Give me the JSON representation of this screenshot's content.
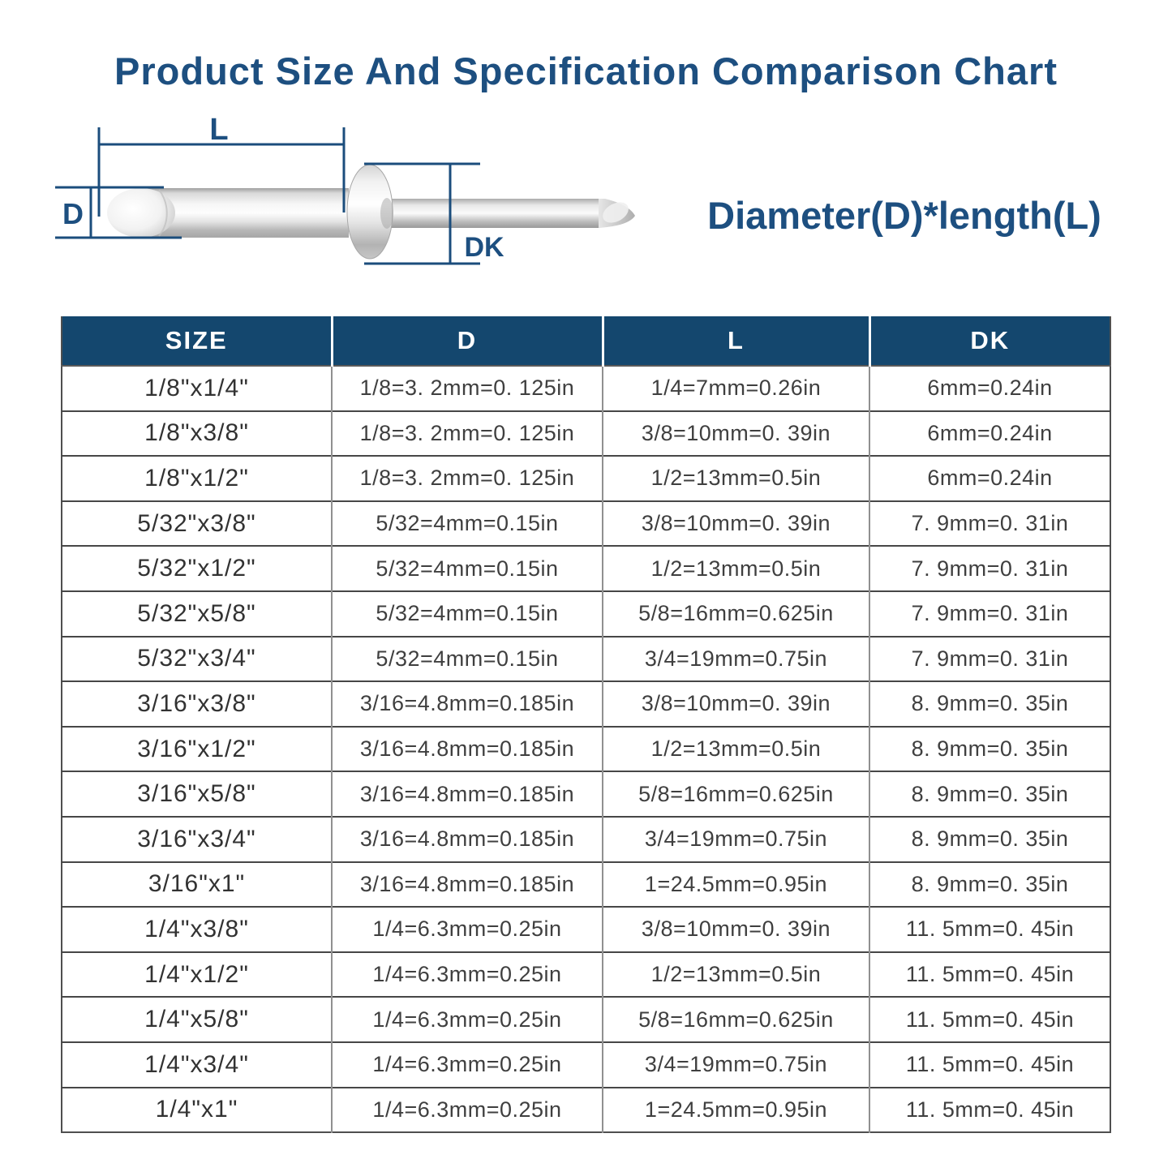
{
  "page": {
    "title": "Product Size And Specification Comparison Chart",
    "formula": "Diameter(D)*length(L)"
  },
  "diagram": {
    "label_l": "L",
    "label_d": "D",
    "label_dk": "DK"
  },
  "colors": {
    "navy_text": "#1d4f80",
    "header_bg": "#14476e",
    "dimension_line": "#1b4d7c",
    "cell_text": "#3f3f3f"
  },
  "table": {
    "headers": {
      "size": "SIZE",
      "d": "D",
      "l": "L",
      "dk": "DK"
    },
    "rows": [
      {
        "size": "1/8\"x1/4\"",
        "d": "1/8=3. 2mm=0. 125in",
        "l": "1/4=7mm=0.26in",
        "dk": "6mm=0.24in"
      },
      {
        "size": "1/8\"x3/8\"",
        "d": "1/8=3. 2mm=0. 125in",
        "l": "3/8=10mm=0. 39in",
        "dk": "6mm=0.24in"
      },
      {
        "size": "1/8\"x1/2\"",
        "d": "1/8=3. 2mm=0. 125in",
        "l": "1/2=13mm=0.5in",
        "dk": "6mm=0.24in"
      },
      {
        "size": "5/32\"x3/8\"",
        "d": "5/32=4mm=0.15in",
        "l": "3/8=10mm=0. 39in",
        "dk": "7. 9mm=0. 31in"
      },
      {
        "size": "5/32\"x1/2\"",
        "d": "5/32=4mm=0.15in",
        "l": "1/2=13mm=0.5in",
        "dk": "7. 9mm=0. 31in"
      },
      {
        "size": "5/32\"x5/8\"",
        "d": "5/32=4mm=0.15in",
        "l": "5/8=16mm=0.625in",
        "dk": "7. 9mm=0. 31in"
      },
      {
        "size": "5/32\"x3/4\"",
        "d": "5/32=4mm=0.15in",
        "l": "3/4=19mm=0.75in",
        "dk": "7. 9mm=0. 31in"
      },
      {
        "size": "3/16\"x3/8\"",
        "d": "3/16=4.8mm=0.185in",
        "l": "3/8=10mm=0. 39in",
        "dk": "8. 9mm=0. 35in"
      },
      {
        "size": "3/16\"x1/2\"",
        "d": "3/16=4.8mm=0.185in",
        "l": "1/2=13mm=0.5in",
        "dk": "8. 9mm=0. 35in"
      },
      {
        "size": "3/16\"x5/8\"",
        "d": "3/16=4.8mm=0.185in",
        "l": "5/8=16mm=0.625in",
        "dk": "8. 9mm=0. 35in"
      },
      {
        "size": "3/16\"x3/4\"",
        "d": "3/16=4.8mm=0.185in",
        "l": "3/4=19mm=0.75in",
        "dk": "8. 9mm=0. 35in"
      },
      {
        "size": "3/16\"x1\"",
        "d": "3/16=4.8mm=0.185in",
        "l": "1=24.5mm=0.95in",
        "dk": "8. 9mm=0. 35in"
      },
      {
        "size": "1/4\"x3/8\"",
        "d": "1/4=6.3mm=0.25in",
        "l": "3/8=10mm=0. 39in",
        "dk": "11. 5mm=0. 45in"
      },
      {
        "size": "1/4\"x1/2\"",
        "d": "1/4=6.3mm=0.25in",
        "l": "1/2=13mm=0.5in",
        "dk": "11. 5mm=0. 45in"
      },
      {
        "size": "1/4\"x5/8\"",
        "d": "1/4=6.3mm=0.25in",
        "l": "5/8=16mm=0.625in",
        "dk": "11. 5mm=0. 45in"
      },
      {
        "size": "1/4\"x3/4\"",
        "d": "1/4=6.3mm=0.25in",
        "l": "3/4=19mm=0.75in",
        "dk": "11. 5mm=0. 45in"
      },
      {
        "size": "1/4\"x1\"",
        "d": "1/4=6.3mm=0.25in",
        "l": "1=24.5mm=0.95in",
        "dk": "11. 5mm=0. 45in"
      }
    ]
  }
}
